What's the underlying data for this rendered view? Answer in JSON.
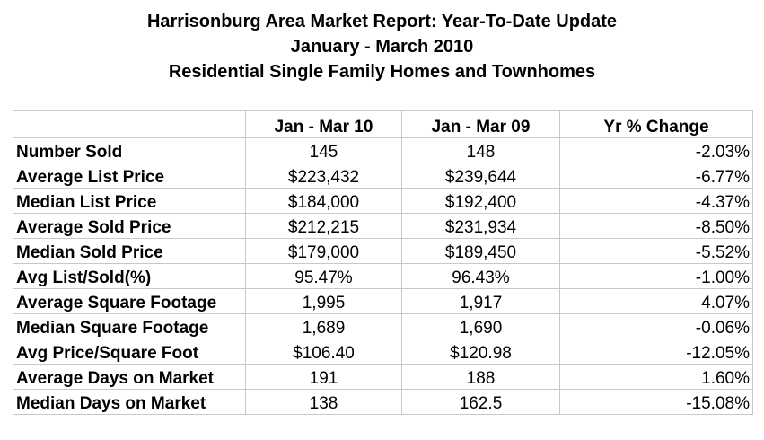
{
  "header": {
    "title": "Harrisonburg Area Market Report: Year-To-Date Update",
    "period": "January - March 2010",
    "subtitle": "Residential Single Family Homes and Townhomes"
  },
  "table": {
    "columns": [
      "",
      "Jan - Mar 10",
      "Jan - Mar 09",
      "Yr % Change"
    ],
    "rows": [
      [
        "Number Sold",
        "145",
        "148",
        "-2.03%"
      ],
      [
        "Average List Price",
        "$223,432",
        "$239,644",
        "-6.77%"
      ],
      [
        "Median List Price",
        "$184,000",
        "$192,400",
        "-4.37%"
      ],
      [
        "Average Sold Price",
        "$212,215",
        "$231,934",
        "-8.50%"
      ],
      [
        "Median Sold Price",
        "$179,000",
        "$189,450",
        "-5.52%"
      ],
      [
        "Avg List/Sold(%)",
        "95.47%",
        "96.43%",
        "-1.00%"
      ],
      [
        "Average Square Footage",
        "1,995",
        "1,917",
        "4.07%"
      ],
      [
        "Median Square Footage",
        "1,689",
        "1,690",
        "-0.06%"
      ],
      [
        "Avg Price/Square Foot",
        "$106.40",
        "$120.98",
        "-12.05%"
      ],
      [
        "Average Days on Market",
        "191",
        "188",
        "1.60%"
      ],
      [
        "Median Days on Market",
        "138",
        "162.5",
        "-15.08%"
      ]
    ]
  }
}
